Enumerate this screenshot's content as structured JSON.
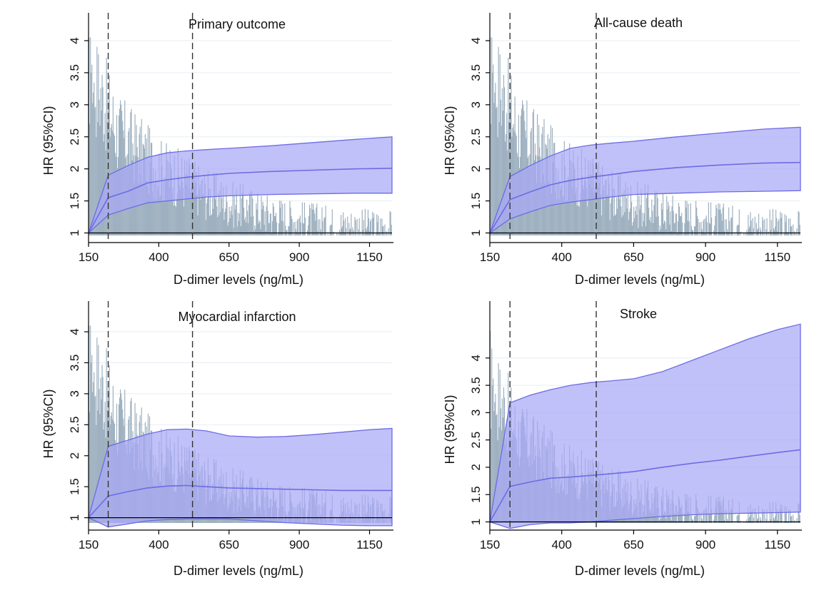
{
  "colors": {
    "histogram": "#9fb1c0",
    "ci_fill": "#a9a9f7",
    "ci_line": "#6c6ce6",
    "hr_line": "#6c6ce6",
    "axis": "#000000",
    "grid": "#e6edf3",
    "cutoff_line": "#333333"
  },
  "chart_data": [
    {
      "type": "area",
      "title": "Primary outcome",
      "xlabel": "D-dimer levels (ng/mL)",
      "ylabel": "HR (95%CI)",
      "xlim": [
        150,
        1230
      ],
      "ylim": [
        0.85,
        4.1
      ],
      "xticks": [
        150,
        400,
        650,
        900,
        1150
      ],
      "yticks": [
        1,
        1.5,
        2,
        2.5,
        3,
        3.5,
        4
      ],
      "reference_line": 1,
      "cutoff_lines": [
        220,
        520
      ],
      "grid": true,
      "hr_curve": {
        "x": [
          150,
          220,
          290,
          360,
          430,
          500,
          570,
          650,
          800,
          950,
          1100,
          1230
        ],
        "hr": [
          1,
          1.55,
          1.65,
          1.78,
          1.83,
          1.87,
          1.9,
          1.93,
          1.96,
          1.98,
          2.0,
          2.01
        ],
        "lower": [
          1,
          1.28,
          1.38,
          1.47,
          1.5,
          1.53,
          1.56,
          1.58,
          1.6,
          1.61,
          1.62,
          1.62
        ],
        "upper": [
          1,
          1.9,
          2.05,
          2.18,
          2.25,
          2.28,
          2.3,
          2.32,
          2.36,
          2.41,
          2.46,
          2.5
        ]
      },
      "histogram": {
        "description": "distribution of D-dimer levels in the background (relative heights read off the HR scale)",
        "bins": [
          150,
          200,
          250,
          300,
          350,
          400,
          450,
          500,
          550,
          600,
          650,
          700,
          750,
          800,
          850,
          900,
          950,
          1000,
          1050,
          1100,
          1150,
          1200,
          1230
        ],
        "heights": [
          3.6,
          3.2,
          2.65,
          2.45,
          2.25,
          2.05,
          1.95,
          1.85,
          1.7,
          1.6,
          1.5,
          1.45,
          1.38,
          1.33,
          1.28,
          1.24,
          1.22,
          1.18,
          1.16,
          1.15,
          1.13,
          1.12
        ]
      }
    },
    {
      "type": "area",
      "title": "All-cause death",
      "xlabel": "D-dimer levels (ng/mL)",
      "ylabel": "HR (95%CI)",
      "xlim": [
        150,
        1230
      ],
      "ylim": [
        0.85,
        4.1
      ],
      "xticks": [
        150,
        400,
        650,
        900,
        1150
      ],
      "yticks": [
        1,
        1.5,
        2,
        2.5,
        3,
        3.5,
        4
      ],
      "reference_line": 1,
      "cutoff_lines": [
        220,
        520
      ],
      "grid": true,
      "hr_curve": {
        "x": [
          150,
          220,
          290,
          360,
          430,
          500,
          570,
          650,
          800,
          950,
          1100,
          1230
        ],
        "hr": [
          1,
          1.52,
          1.64,
          1.75,
          1.82,
          1.87,
          1.91,
          1.96,
          2.02,
          2.06,
          2.09,
          2.1
        ],
        "lower": [
          1,
          1.22,
          1.33,
          1.43,
          1.48,
          1.52,
          1.56,
          1.6,
          1.62,
          1.64,
          1.65,
          1.66
        ],
        "upper": [
          1,
          1.88,
          2.05,
          2.2,
          2.32,
          2.37,
          2.4,
          2.43,
          2.5,
          2.56,
          2.62,
          2.65
        ]
      },
      "histogram": {
        "description": "distribution of D-dimer levels in the background (relative heights read off the HR scale)",
        "bins": [
          150,
          200,
          250,
          300,
          350,
          400,
          450,
          500,
          550,
          600,
          650,
          700,
          750,
          800,
          850,
          900,
          950,
          1000,
          1050,
          1100,
          1150,
          1200,
          1230
        ],
        "heights": [
          3.6,
          3.2,
          2.65,
          2.45,
          2.25,
          2.05,
          1.95,
          1.85,
          1.7,
          1.6,
          1.5,
          1.45,
          1.38,
          1.33,
          1.28,
          1.24,
          1.22,
          1.18,
          1.16,
          1.15,
          1.13,
          1.12
        ]
      }
    },
    {
      "type": "area",
      "title": "Myocardial infarction",
      "xlabel": "D-dimer levels (ng/mL)",
      "ylabel": "HR (95%CI)",
      "xlim": [
        150,
        1230
      ],
      "ylim": [
        0.8,
        4.15
      ],
      "xticks": [
        150,
        400,
        650,
        900,
        1150
      ],
      "yticks": [
        1,
        1.5,
        2,
        2.5,
        3,
        3.5,
        4
      ],
      "reference_line": 1,
      "cutoff_lines": [
        220,
        520
      ],
      "grid": true,
      "hr_curve": {
        "x": [
          150,
          220,
          290,
          360,
          430,
          500,
          570,
          650,
          750,
          850,
          950,
          1050,
          1150,
          1230
        ],
        "hr": [
          1,
          1.35,
          1.42,
          1.48,
          1.51,
          1.52,
          1.5,
          1.48,
          1.47,
          1.46,
          1.45,
          1.44,
          1.44,
          1.44
        ],
        "lower": [
          1,
          0.85,
          0.9,
          0.95,
          0.97,
          0.98,
          0.98,
          0.98,
          0.95,
          0.92,
          0.9,
          0.88,
          0.87,
          0.87
        ],
        "upper": [
          1,
          2.15,
          2.25,
          2.35,
          2.42,
          2.43,
          2.4,
          2.32,
          2.3,
          2.31,
          2.34,
          2.38,
          2.42,
          2.44
        ]
      },
      "histogram": {
        "description": "distribution of D-dimer levels in the background (relative heights read off the HR scale)",
        "bins": [
          150,
          200,
          250,
          300,
          350,
          400,
          450,
          500,
          550,
          600,
          650,
          700,
          750,
          800,
          850,
          900,
          950,
          1000,
          1050,
          1100,
          1150,
          1200,
          1230
        ],
        "heights": [
          3.6,
          3.2,
          2.65,
          2.45,
          2.25,
          2.05,
          1.95,
          1.85,
          1.7,
          1.6,
          1.5,
          1.45,
          1.38,
          1.33,
          1.28,
          1.24,
          1.22,
          1.18,
          1.16,
          1.15,
          1.13,
          1.12
        ]
      }
    },
    {
      "type": "area",
      "title": "Stroke",
      "xlabel": "D-dimer levels (ng/mL)",
      "ylabel": "HR (95%CI)",
      "xlim": [
        150,
        1230
      ],
      "ylim": [
        0.85,
        4.65
      ],
      "xticks": [
        150,
        400,
        650,
        900,
        1150
      ],
      "yticks": [
        1,
        1.5,
        2,
        2.5,
        3,
        3.5,
        4
      ],
      "reference_line": 1,
      "cutoff_lines": [
        220,
        520
      ],
      "grid": true,
      "hr_curve": {
        "x": [
          150,
          220,
          290,
          360,
          430,
          500,
          570,
          650,
          750,
          850,
          950,
          1050,
          1150,
          1230
        ],
        "hr": [
          1,
          1.65,
          1.73,
          1.8,
          1.82,
          1.85,
          1.88,
          1.92,
          2.0,
          2.07,
          2.13,
          2.2,
          2.27,
          2.32
        ],
        "lower": [
          1,
          0.88,
          0.95,
          0.98,
          0.98,
          1.0,
          1.03,
          1.06,
          1.1,
          1.13,
          1.15,
          1.16,
          1.17,
          1.18
        ],
        "upper": [
          1,
          3.18,
          3.32,
          3.42,
          3.5,
          3.55,
          3.58,
          3.62,
          3.75,
          3.95,
          4.15,
          4.35,
          4.52,
          4.62
        ]
      },
      "histogram": {
        "description": "distribution of D-dimer levels in the background (relative heights read off the HR scale)",
        "bins": [
          150,
          200,
          250,
          300,
          350,
          400,
          450,
          500,
          550,
          600,
          650,
          700,
          750,
          800,
          850,
          900,
          950,
          1000,
          1050,
          1100,
          1150,
          1200,
          1230
        ],
        "heights": [
          3.6,
          3.2,
          2.65,
          2.45,
          2.25,
          2.05,
          1.95,
          1.85,
          1.7,
          1.6,
          1.5,
          1.45,
          1.38,
          1.33,
          1.28,
          1.24,
          1.22,
          1.18,
          1.16,
          1.15,
          1.13,
          1.12
        ]
      }
    }
  ]
}
